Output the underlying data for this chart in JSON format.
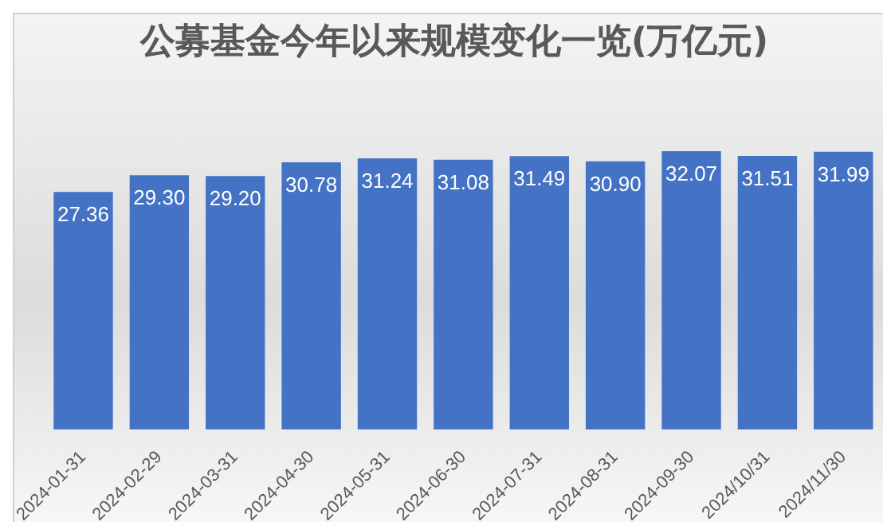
{
  "chart_data": {
    "type": "bar",
    "title": "公募基金今年以来规模变化一览(万亿元)",
    "categories": [
      "2024-01-31",
      "2024-02-29",
      "2024-03-31",
      "2024-04-30",
      "2024-05-31",
      "2024-06-30",
      "2024-07-31",
      "2024-08-31",
      "2024-09-30",
      "2024/10/31",
      "2024/11/30"
    ],
    "values": [
      27.36,
      29.3,
      29.2,
      30.78,
      31.24,
      31.08,
      31.49,
      30.9,
      32.07,
      31.51,
      31.99
    ],
    "value_labels": [
      "27.36",
      "29.30",
      "29.20",
      "30.78",
      "31.24",
      "31.08",
      "31.49",
      "30.90",
      "32.07",
      "31.51",
      "31.99"
    ],
    "color": "#4472c4",
    "tick_labels": "x",
    "grid": false,
    "legend": false
  }
}
